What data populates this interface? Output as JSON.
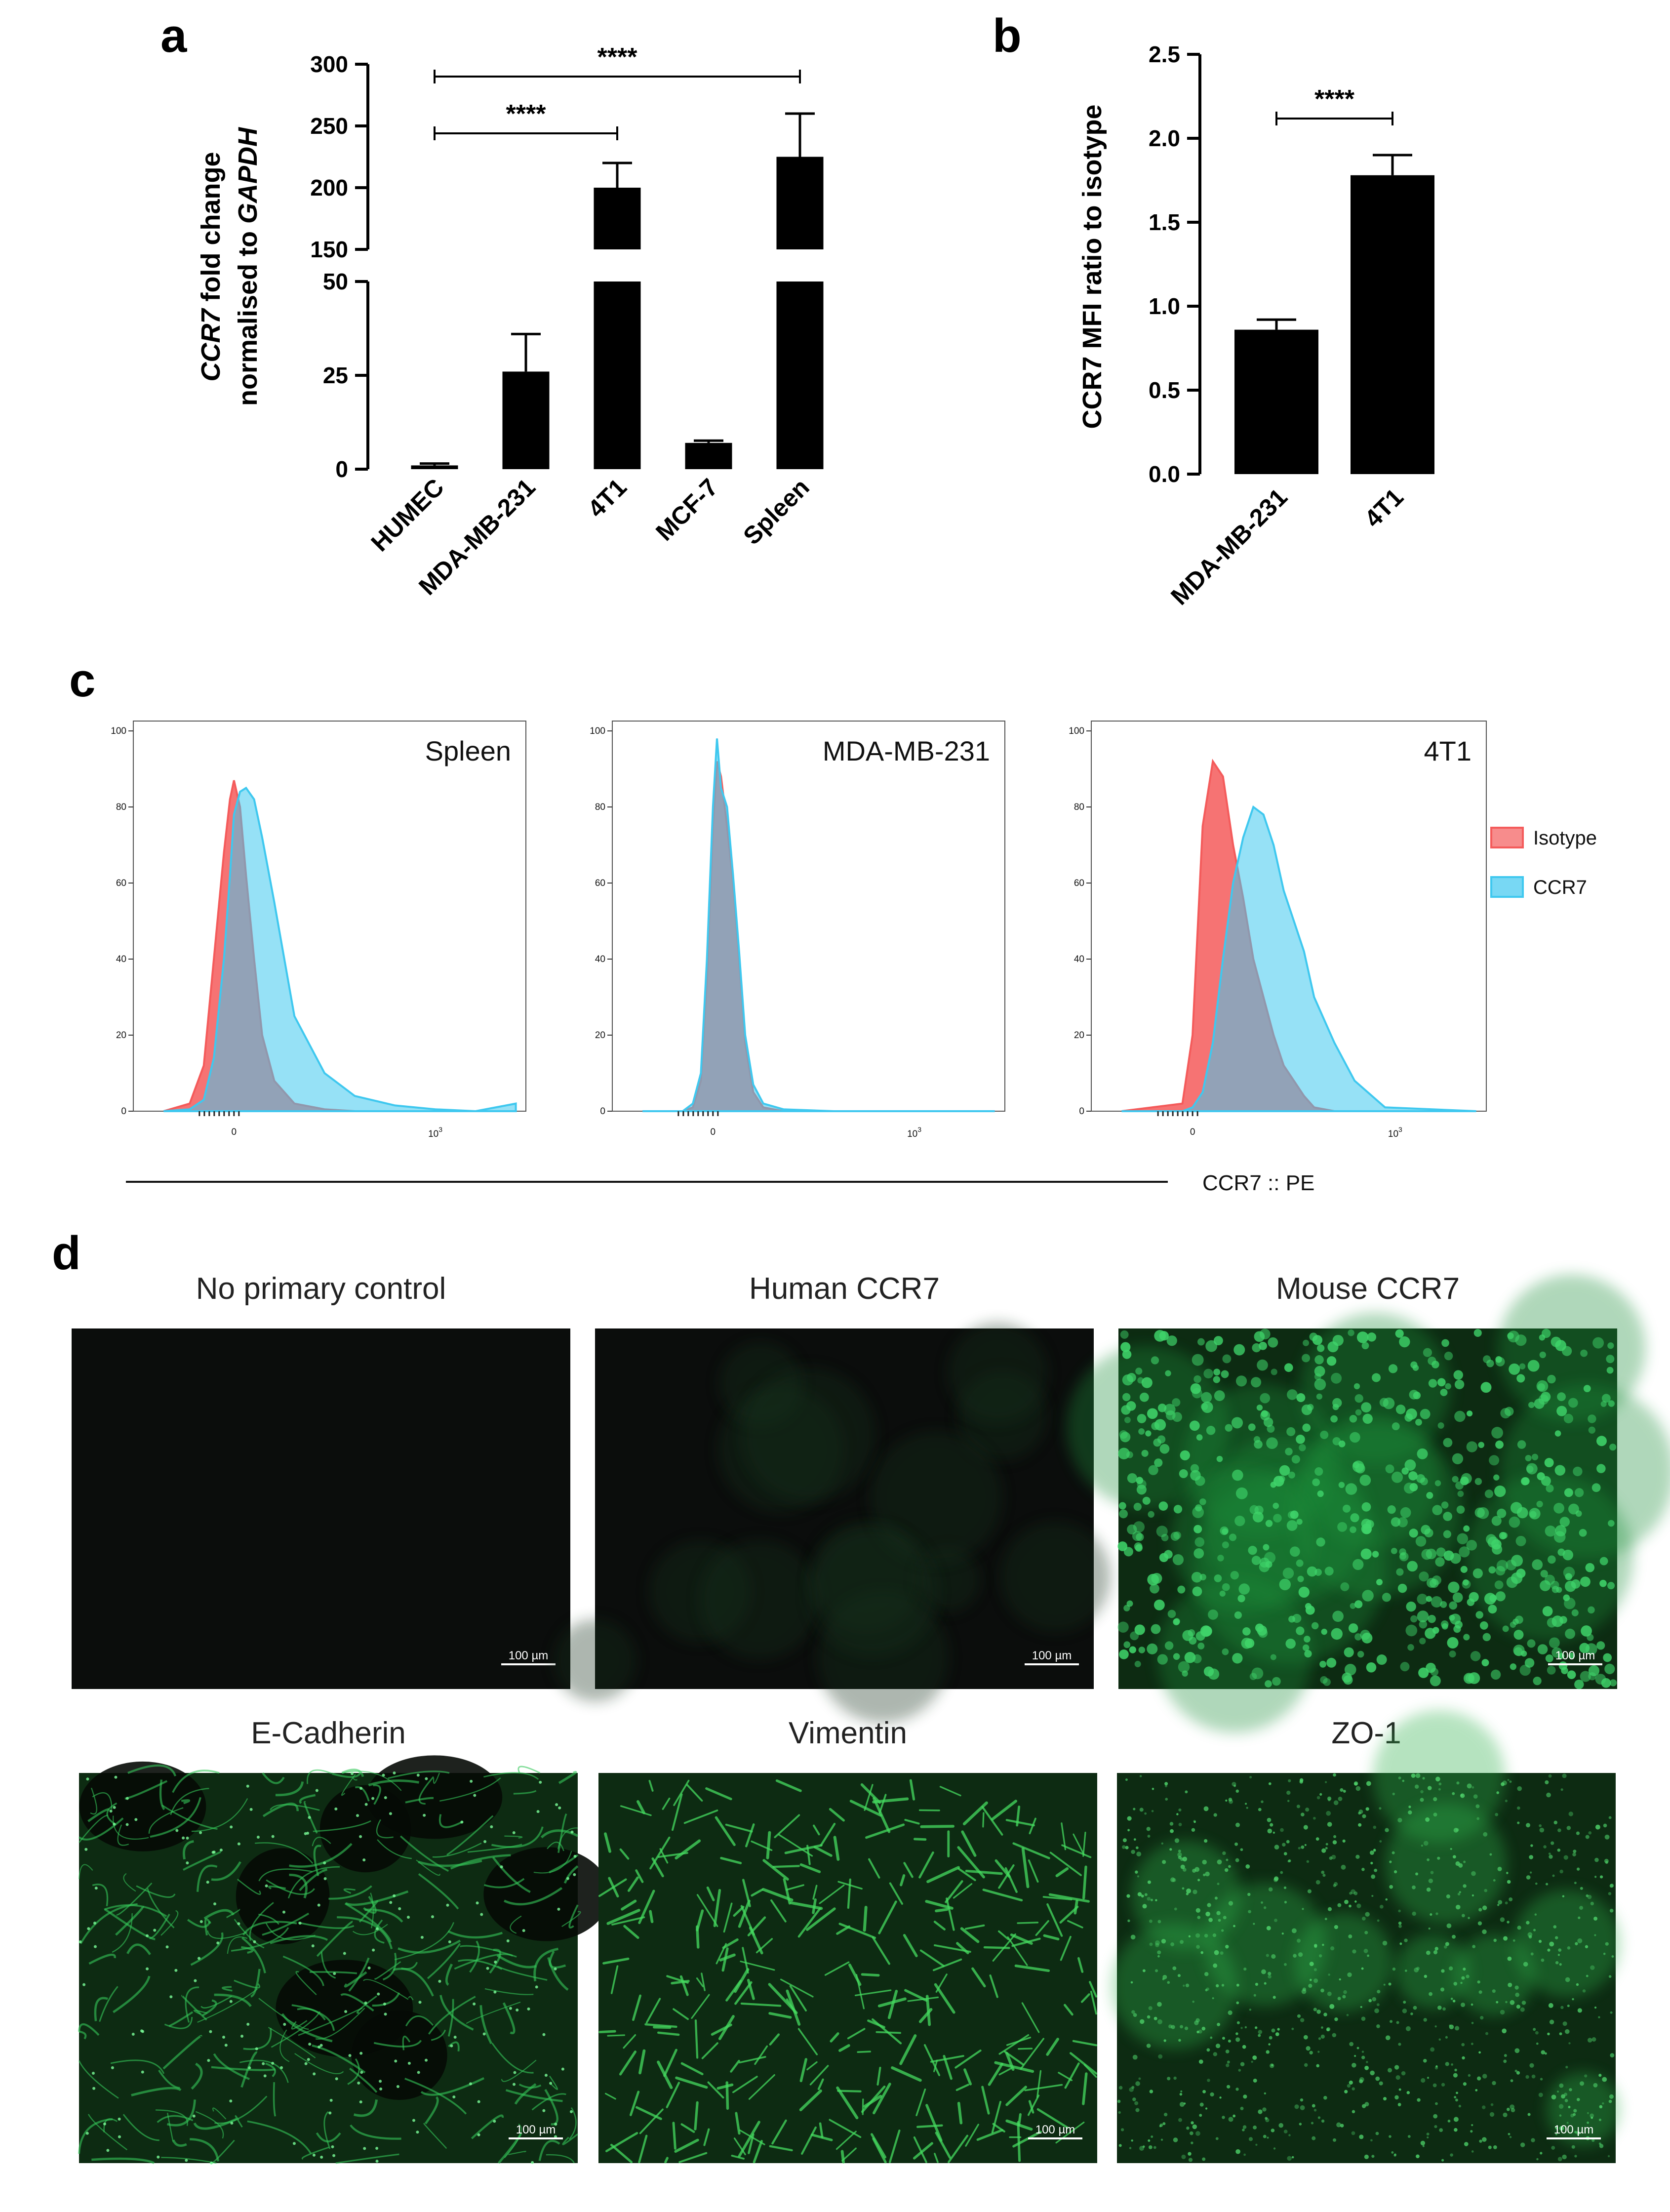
{
  "panels": {
    "a": "a",
    "b": "b",
    "c": "c",
    "d": "d"
  },
  "chart_data": [
    {
      "id": "a",
      "type": "bar",
      "categories": [
        "HUMEC",
        "MDA-MB-231",
        "4T1",
        "MCF-7",
        "Spleen"
      ],
      "values": [
        1,
        26,
        200,
        7,
        225
      ],
      "errors": [
        0.5,
        10,
        20,
        0.6,
        35
      ],
      "ylabel_line1_italic": "CCR7",
      "ylabel_line1_rest": " fold change",
      "ylabel_line2_rest": "normalised to ",
      "ylabel_line2_italic": "GAPDH",
      "axis_break": [
        50,
        150
      ],
      "ylim_lower": [
        0,
        50
      ],
      "ylim_upper": [
        150,
        300
      ],
      "yticks_lower": [
        "0",
        "25",
        "50"
      ],
      "yticks_upper": [
        "150",
        "200",
        "250",
        "300"
      ],
      "significance": [
        {
          "from": "HUMEC",
          "to": "4T1",
          "label": "****"
        },
        {
          "from": "HUMEC",
          "to": "Spleen",
          "label": "****"
        }
      ]
    },
    {
      "id": "b",
      "type": "bar",
      "categories": [
        "MDA-MB-231",
        "4T1"
      ],
      "values": [
        0.86,
        1.78
      ],
      "errors": [
        0.06,
        0.12
      ],
      "ylabel": "CCR7 MFI ratio to isotype",
      "ylim": [
        0,
        2.5
      ],
      "yticks": [
        "0.0",
        "0.5",
        "1.0",
        "1.5",
        "2.0",
        "2.5"
      ],
      "significance": [
        {
          "from": "MDA-MB-231",
          "to": "4T1",
          "label": "****"
        }
      ]
    },
    {
      "id": "c",
      "type": "area",
      "xlabel": "CCR7 :: PE",
      "yticks": [
        "0",
        "20",
        "40",
        "60",
        "80",
        "100"
      ],
      "ylim": [
        0,
        100
      ],
      "xtick_zero": "0",
      "xtick_base": "10",
      "xtick_exp": "3",
      "legend": [
        {
          "name": "Isotype",
          "color": "#f45b5b"
        },
        {
          "name": "CCR7",
          "color": "#3fc8ef"
        }
      ],
      "legend_position": "right",
      "subplots": [
        {
          "title": "Spleen",
          "x": [
            -0.35,
            -0.22,
            -0.15,
            -0.1,
            -0.05,
            -0.02,
            0.0,
            0.03,
            0.06,
            0.1,
            0.14,
            0.2,
            0.3,
            0.45,
            0.6,
            0.8,
            1.0,
            1.2,
            1.4
          ],
          "isotype": [
            0,
            2,
            12,
            40,
            68,
            82,
            87,
            80,
            62,
            40,
            20,
            8,
            2,
            0.5,
            0,
            0,
            0,
            0,
            0
          ],
          "ccr7": [
            0,
            0.5,
            3,
            14,
            40,
            62,
            78,
            84,
            85,
            82,
            72,
            55,
            25,
            10,
            4,
            1.5,
            0.5,
            0,
            2
          ]
        },
        {
          "title": "MDA-MB-231",
          "x": [
            -0.35,
            -0.15,
            -0.1,
            -0.06,
            -0.03,
            0.0,
            0.02,
            0.04,
            0.07,
            0.1,
            0.13,
            0.16,
            0.2,
            0.25,
            0.35,
            0.6,
            1.0,
            1.4
          ],
          "isotype": [
            0,
            0,
            1,
            8,
            35,
            75,
            92,
            88,
            75,
            60,
            40,
            18,
            5,
            1,
            0,
            0,
            0,
            0
          ],
          "ccr7": [
            0,
            0,
            2,
            10,
            40,
            80,
            98,
            85,
            80,
            62,
            42,
            20,
            7,
            2,
            0.5,
            0,
            0,
            0
          ]
        },
        {
          "title": "4T1",
          "x": [
            -0.35,
            -0.05,
            0.0,
            0.05,
            0.1,
            0.15,
            0.2,
            0.25,
            0.3,
            0.35,
            0.4,
            0.45,
            0.5,
            0.55,
            0.6,
            0.7,
            0.8,
            0.95,
            1.4
          ],
          "isotype": [
            0,
            2,
            20,
            75,
            92,
            88,
            70,
            56,
            40,
            30,
            20,
            12,
            8,
            4,
            1,
            0,
            0,
            0,
            0
          ],
          "ccr7": [
            0,
            0,
            1,
            5,
            18,
            40,
            60,
            72,
            80,
            78,
            70,
            58,
            50,
            42,
            30,
            18,
            8,
            1,
            0
          ]
        }
      ]
    }
  ],
  "microscopy": [
    {
      "title": "No primary control",
      "scale": "100 µm",
      "style": "dark"
    },
    {
      "title": "Human CCR7",
      "scale": "100 µm",
      "style": "dark2"
    },
    {
      "title": "Mouse CCR7",
      "scale": "100 µm",
      "style": "cells"
    },
    {
      "title": "E-Cadherin",
      "scale": "100 µm",
      "style": "mesh"
    },
    {
      "title": "Vimentin",
      "scale": "100 µm",
      "style": "fibers"
    },
    {
      "title": "ZO-1",
      "scale": "100 µm",
      "style": "speckle"
    }
  ],
  "colors": {
    "bar": "#000000",
    "isotype": "#f45b5b",
    "ccr7": "#3fc8ef",
    "overlap": "#9aa3bc",
    "green": "#2ecc55"
  }
}
